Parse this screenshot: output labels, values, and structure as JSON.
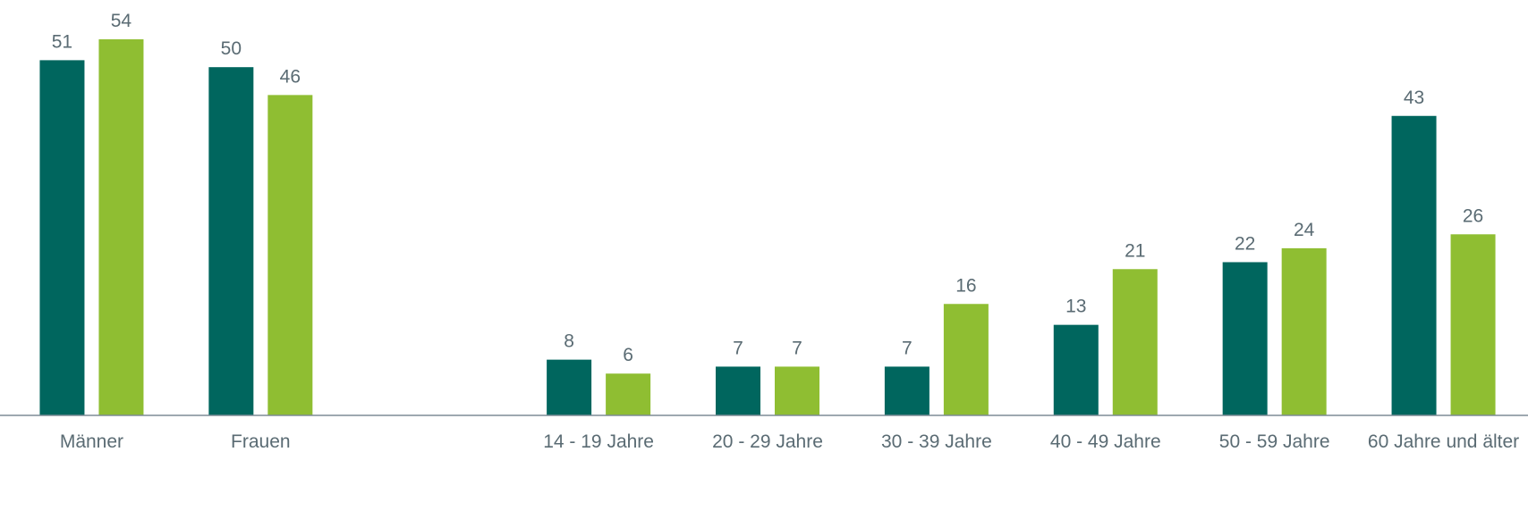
{
  "chart_data": {
    "type": "bar",
    "categories": [
      "Männer",
      "Frauen",
      null,
      "14 - 19 Jahre",
      "20 - 29 Jahre",
      "30 - 39 Jahre",
      "40 - 49 Jahre",
      "50 - 59 Jahre",
      "60 Jahre und älter"
    ],
    "series": [
      {
        "color": "#00665e",
        "values": [
          51,
          50,
          null,
          8,
          7,
          7,
          13,
          22,
          43
        ]
      },
      {
        "color": "#8fbe32",
        "values": [
          54,
          46,
          null,
          6,
          7,
          16,
          21,
          24,
          26
        ]
      }
    ]
  }
}
